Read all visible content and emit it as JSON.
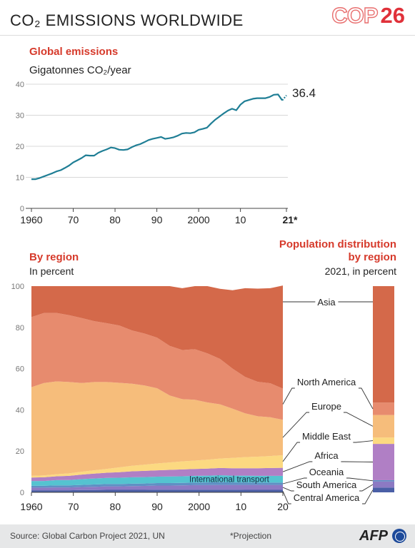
{
  "header": {
    "title": "CO₂ EMISSIONS WORLDWIDE",
    "logo_word": "COP",
    "logo_num": "26"
  },
  "global": {
    "title": "Global emissions",
    "unit": "Gigatonnes CO₂/year",
    "last_value_label": "36.4"
  },
  "region": {
    "title": "By region",
    "unit": "In percent"
  },
  "population": {
    "title_line1": "Population distribution",
    "title_line2": "by region",
    "unit": "2021, in percent"
  },
  "footer": {
    "source": "Source: Global Carbon Project 2021, UN",
    "projection": "*Projection",
    "agency": "AFP"
  },
  "colors": {
    "line": "#1f7e95",
    "Asia": "#d4694a",
    "North America": "#e78b6e",
    "Europe": "#f6bd7b",
    "Middle East": "#fcd981",
    "Africa": "#b07fc5",
    "International transport": "#55c3d0",
    "Oceania": "#5f90c4",
    "South America": "#8c7ac3",
    "Central America": "#4a5fa6"
  },
  "chart_data": [
    {
      "type": "line",
      "title": "Global emissions",
      "ylabel": "Gigatonnes CO₂/year",
      "ylim": [
        0,
        40
      ],
      "yticks": [
        0,
        10,
        20,
        30,
        40
      ],
      "xlim": [
        1960,
        2021
      ],
      "xticks": [
        1960,
        1970,
        1980,
        1990,
        2000,
        2010,
        2021
      ],
      "xtick_labels": [
        "1960",
        "70",
        "80",
        "90",
        "2000",
        "10",
        "21*"
      ],
      "grid": true,
      "x": [
        1960,
        1961,
        1962,
        1963,
        1964,
        1965,
        1966,
        1967,
        1968,
        1969,
        1970,
        1971,
        1972,
        1973,
        1974,
        1975,
        1976,
        1977,
        1978,
        1979,
        1980,
        1981,
        1982,
        1983,
        1984,
        1985,
        1986,
        1987,
        1988,
        1989,
        1990,
        1991,
        1992,
        1993,
        1994,
        1995,
        1996,
        1997,
        1998,
        1999,
        2000,
        2001,
        2002,
        2003,
        2004,
        2005,
        2006,
        2007,
        2008,
        2009,
        2010,
        2011,
        2012,
        2013,
        2014,
        2015,
        2016,
        2017,
        2018,
        2019,
        2020
      ],
      "values": [
        9.4,
        9.4,
        9.8,
        10.3,
        10.8,
        11.3,
        11.9,
        12.3,
        13.0,
        13.8,
        14.8,
        15.5,
        16.2,
        17.1,
        17.0,
        17.0,
        17.9,
        18.5,
        19.0,
        19.6,
        19.4,
        18.9,
        18.8,
        19.0,
        19.7,
        20.3,
        20.7,
        21.3,
        22.0,
        22.4,
        22.7,
        23.0,
        22.4,
        22.6,
        22.9,
        23.4,
        24.1,
        24.3,
        24.2,
        24.5,
        25.3,
        25.6,
        26.0,
        27.4,
        28.6,
        29.6,
        30.6,
        31.5,
        32.1,
        31.6,
        33.4,
        34.5,
        34.9,
        35.3,
        35.5,
        35.5,
        35.5,
        35.9,
        36.6,
        36.7,
        34.8
      ],
      "projection": {
        "x": [
          2020,
          2021
        ],
        "values": [
          34.8,
          36.4
        ]
      },
      "end_label": "36.4"
    },
    {
      "type": "area",
      "title": "By region",
      "ylabel": "In percent",
      "ylim": [
        0,
        100
      ],
      "yticks": [
        0,
        20,
        40,
        60,
        80,
        100
      ],
      "xlim": [
        1960,
        2020
      ],
      "xticks": [
        1960,
        1970,
        1980,
        1990,
        2000,
        2010,
        2020
      ],
      "xtick_labels": [
        "1960",
        "70",
        "80",
        "90",
        "2000",
        "10",
        "20"
      ],
      "x": [
        1960,
        1963,
        1966,
        1969,
        1972,
        1975,
        1978,
        1981,
        1984,
        1987,
        1990,
        1993,
        1996,
        1999,
        2002,
        2005,
        2008,
        2011,
        2014,
        2017,
        2020
      ],
      "series": [
        {
          "name": "Central America",
          "values": [
            1,
            1,
            1,
            1,
            1.1,
            1.1,
            1.2,
            1.2,
            1.2,
            1.2,
            1.3,
            1.3,
            1.3,
            1.3,
            1.3,
            1.3,
            1.3,
            1.2,
            1.2,
            1.2,
            1.2
          ]
        },
        {
          "name": "South America",
          "values": [
            1.3,
            1.3,
            1.4,
            1.4,
            1.5,
            1.6,
            1.7,
            1.7,
            1.8,
            1.9,
            2,
            2,
            2.1,
            2.2,
            2.2,
            2.3,
            2.3,
            2.4,
            2.4,
            2.4,
            2.4
          ]
        },
        {
          "name": "Oceania",
          "values": [
            0.9,
            0.9,
            1,
            1,
            1,
            1.1,
            1.1,
            1.1,
            1.2,
            1.2,
            1.2,
            1.2,
            1.2,
            1.2,
            1.3,
            1.3,
            1.2,
            1.2,
            1.1,
            1.1,
            1.1
          ]
        },
        {
          "name": "International transport",
          "values": [
            2.3,
            2.3,
            2.5,
            2.6,
            2.8,
            2.9,
            3,
            3.1,
            3.1,
            3.1,
            3.1,
            3.2,
            3.2,
            3.3,
            3.3,
            3.4,
            3.3,
            3.3,
            3.3,
            3.3,
            3.3
          ]
        },
        {
          "name": "Africa",
          "values": [
            1.7,
            1.8,
            1.9,
            2,
            2.2,
            2.4,
            2.5,
            2.7,
            2.9,
            3,
            3.1,
            3.2,
            3.3,
            3.3,
            3.4,
            3.5,
            3.6,
            3.6,
            3.7,
            3.8,
            3.9
          ]
        },
        {
          "name": "Middle East",
          "values": [
            0.8,
            0.9,
            1,
            1.2,
            1.4,
            1.6,
            1.9,
            2.3,
            2.7,
            3,
            3.3,
            3.6,
            3.9,
            4.1,
            4.3,
            4.6,
            5.0,
            5.4,
            5.6,
            5.8,
            6.1
          ]
        },
        {
          "name": "Europe",
          "values": [
            43,
            44.8,
            45,
            44.3,
            43,
            42.8,
            42.1,
            41,
            39.8,
            38.4,
            36.5,
            32.5,
            30.2,
            29.5,
            27.8,
            26.3,
            23.9,
            21.2,
            19.6,
            18.8,
            17.2
          ]
        },
        {
          "name": "North America",
          "values": [
            34,
            34,
            33.2,
            32.4,
            31.5,
            29.5,
            28.5,
            27.8,
            25.8,
            25.2,
            24.5,
            24,
            23.8,
            24.5,
            23.8,
            22,
            19.4,
            17.7,
            16.7,
            16.5,
            15.1
          ]
        },
        {
          "name": "Asia",
          "values": [
            15,
            13,
            13,
            14.1,
            15.5,
            17,
            18,
            19.1,
            21.5,
            23,
            25,
            29,
            30,
            30.6,
            32.6,
            34,
            38,
            43,
            45.2,
            46.1,
            50
          ]
        }
      ],
      "labels": [
        "Asia",
        "North America",
        "Europe",
        "Middle East",
        "Africa",
        "Oceania",
        "South America",
        "Central America",
        "International transport"
      ]
    },
    {
      "type": "bar",
      "title": "Population distribution by region",
      "subtitle": "2021, in percent",
      "stacked": true,
      "series": [
        {
          "name": "Central America",
          "value": 2.3
        },
        {
          "name": "South America",
          "value": 3
        },
        {
          "name": "Oceania",
          "value": 0.6
        },
        {
          "name": "International transport",
          "value": 0
        },
        {
          "name": "Africa",
          "value": 17.6
        },
        {
          "name": "Middle East",
          "value": 3.1
        },
        {
          "name": "Europe",
          "value": 10.9
        },
        {
          "name": "North America",
          "value": 6
        },
        {
          "name": "Asia",
          "value": 56.5
        }
      ]
    }
  ]
}
